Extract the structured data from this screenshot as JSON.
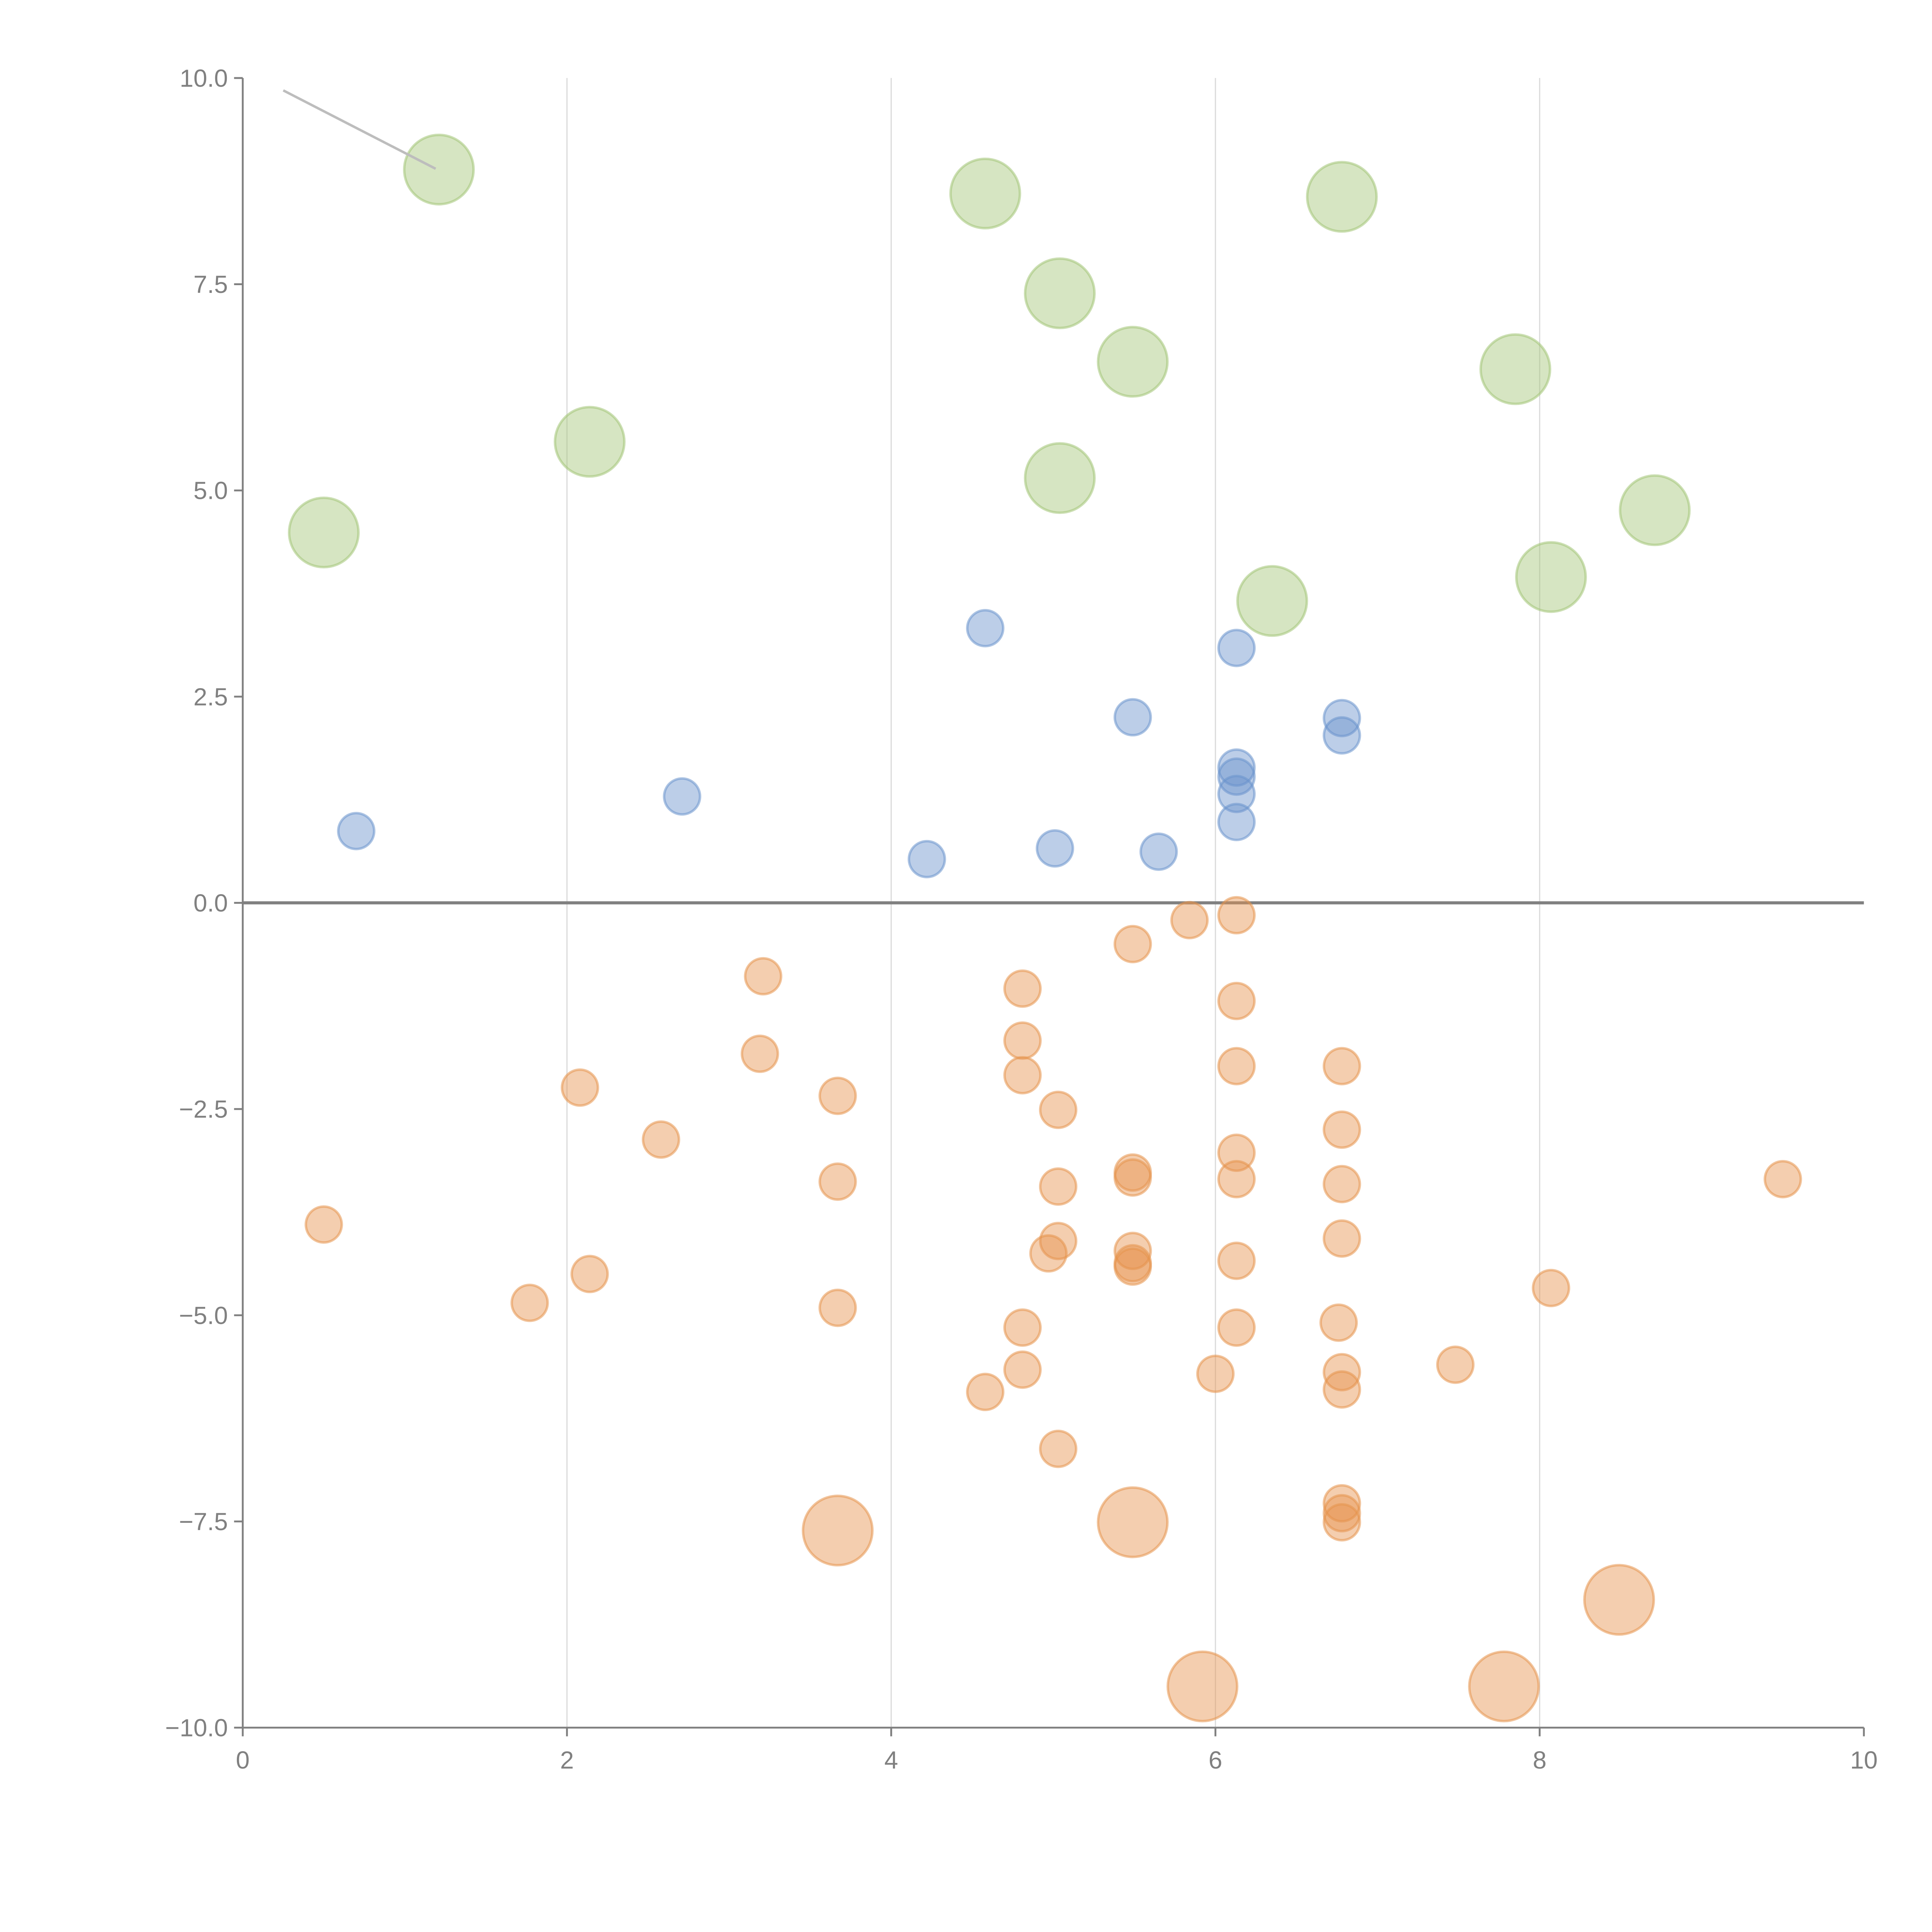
{
  "chart_data": {
    "type": "scatter",
    "title": "",
    "xlabel": "",
    "ylabel": "",
    "xlim": [
      0,
      10
    ],
    "ylim": [
      -10,
      10
    ],
    "x_ticks": [
      "0",
      "2",
      "4",
      "6",
      "8",
      "10"
    ],
    "x_tick_values": [
      0,
      2,
      4,
      6,
      8,
      10
    ],
    "y_ticks": [
      "10.0",
      "7.5",
      "5.0",
      "2.5",
      "0.0",
      "−2.5",
      "−5.0",
      "−7.5",
      "−10.0"
    ],
    "y_tick_values": [
      10,
      7.5,
      5,
      2.5,
      0,
      -2.5,
      -5,
      -7.5,
      -10
    ],
    "grid": "vertical",
    "reference_line_y": 0,
    "annotation_line": {
      "from": [
        0.25,
        9.85
      ],
      "to": [
        1.19,
        8.9
      ]
    },
    "series": [
      {
        "name": "green-large",
        "color": "#a3c577",
        "size": "large",
        "points": [
          [
            1.21,
            8.89
          ],
          [
            4.58,
            8.6
          ],
          [
            6.78,
            8.56
          ],
          [
            5.04,
            7.39
          ],
          [
            5.49,
            6.56
          ],
          [
            7.85,
            6.47
          ],
          [
            2.14,
            5.59
          ],
          [
            5.04,
            5.15
          ],
          [
            0.5,
            4.49
          ],
          [
            8.71,
            4.76
          ],
          [
            8.07,
            3.95
          ],
          [
            6.35,
            3.66
          ]
        ]
      },
      {
        "name": "blue-small",
        "color": "#6a93cc",
        "size": "small",
        "points": [
          [
            4.58,
            3.33
          ],
          [
            6.13,
            3.09
          ],
          [
            5.49,
            2.25
          ],
          [
            6.78,
            2.24
          ],
          [
            6.78,
            2.03
          ],
          [
            2.71,
            1.29
          ],
          [
            6.13,
            1.64
          ],
          [
            6.13,
            1.53
          ],
          [
            6.13,
            1.32
          ],
          [
            6.13,
            0.98
          ],
          [
            0.7,
            0.87
          ],
          [
            5.01,
            0.66
          ],
          [
            5.65,
            0.62
          ],
          [
            4.22,
            0.53
          ]
        ]
      },
      {
        "name": "orange-small",
        "color": "#e6934d",
        "size": "small",
        "points": [
          [
            5.84,
            -0.21
          ],
          [
            6.13,
            -0.15
          ],
          [
            5.49,
            -0.5
          ],
          [
            3.21,
            -0.89
          ],
          [
            4.81,
            -1.04
          ],
          [
            6.13,
            -1.19
          ],
          [
            4.81,
            -1.67
          ],
          [
            3.19,
            -1.83
          ],
          [
            6.13,
            -1.98
          ],
          [
            6.78,
            -1.98
          ],
          [
            4.81,
            -2.09
          ],
          [
            2.08,
            -2.24
          ],
          [
            3.67,
            -2.34
          ],
          [
            5.03,
            -2.51
          ],
          [
            6.78,
            -2.75
          ],
          [
            2.58,
            -2.87
          ],
          [
            6.13,
            -3.03
          ],
          [
            5.49,
            -3.27
          ],
          [
            5.49,
            -3.33
          ],
          [
            6.13,
            -3.35
          ],
          [
            9.5,
            -3.35
          ],
          [
            3.67,
            -3.38
          ],
          [
            6.78,
            -3.41
          ],
          [
            5.03,
            -3.44
          ],
          [
            0.5,
            -3.9
          ],
          [
            6.78,
            -4.07
          ],
          [
            5.03,
            -4.1
          ],
          [
            4.97,
            -4.25
          ],
          [
            5.49,
            -4.22
          ],
          [
            5.49,
            -4.37
          ],
          [
            5.49,
            -4.41
          ],
          [
            6.13,
            -4.34
          ],
          [
            2.14,
            -4.5
          ],
          [
            8.07,
            -4.67
          ],
          [
            1.77,
            -4.85
          ],
          [
            3.67,
            -4.91
          ],
          [
            6.76,
            -5.09
          ],
          [
            4.81,
            -5.15
          ],
          [
            6.13,
            -5.15
          ],
          [
            7.48,
            -5.6
          ],
          [
            4.81,
            -5.66
          ],
          [
            6.78,
            -5.69
          ],
          [
            6.0,
            -5.71
          ],
          [
            6.78,
            -5.9
          ],
          [
            4.58,
            -5.93
          ],
          [
            5.03,
            -6.62
          ],
          [
            6.78,
            -7.28
          ],
          [
            6.78,
            -7.4
          ],
          [
            6.78,
            -7.51
          ]
        ]
      },
      {
        "name": "orange-large",
        "color": "#e6934d",
        "size": "large",
        "points": [
          [
            3.67,
            -7.61
          ],
          [
            5.49,
            -7.51
          ],
          [
            8.49,
            -8.45
          ],
          [
            5.92,
            -9.5
          ],
          [
            7.78,
            -9.5
          ]
        ]
      }
    ]
  }
}
